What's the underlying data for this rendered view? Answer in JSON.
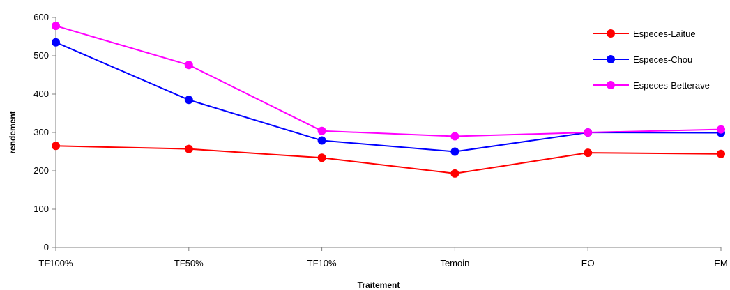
{
  "chart_data": {
    "type": "line",
    "title": "",
    "xlabel": "Traitement",
    "ylabel": "rendement",
    "categories": [
      "TF100%",
      "TF50%",
      "TF10%",
      "Temoin",
      "EO",
      "EM"
    ],
    "ylim": [
      0,
      600
    ],
    "yticks": [
      0,
      100,
      200,
      300,
      400,
      500,
      600
    ],
    "grid": false,
    "legend_position": "top-right",
    "series": [
      {
        "name": "Especes-Laitue",
        "color": "#ff0000",
        "values": [
          265,
          257,
          234,
          193,
          247,
          244
        ]
      },
      {
        "name": "Especes-Chou",
        "color": "#0000ff",
        "values": [
          535,
          385,
          279,
          250,
          300,
          299
        ]
      },
      {
        "name": "Especes-Betterave",
        "color": "#ff00ff",
        "values": [
          578,
          476,
          304,
          290,
          300,
          308
        ]
      }
    ]
  }
}
